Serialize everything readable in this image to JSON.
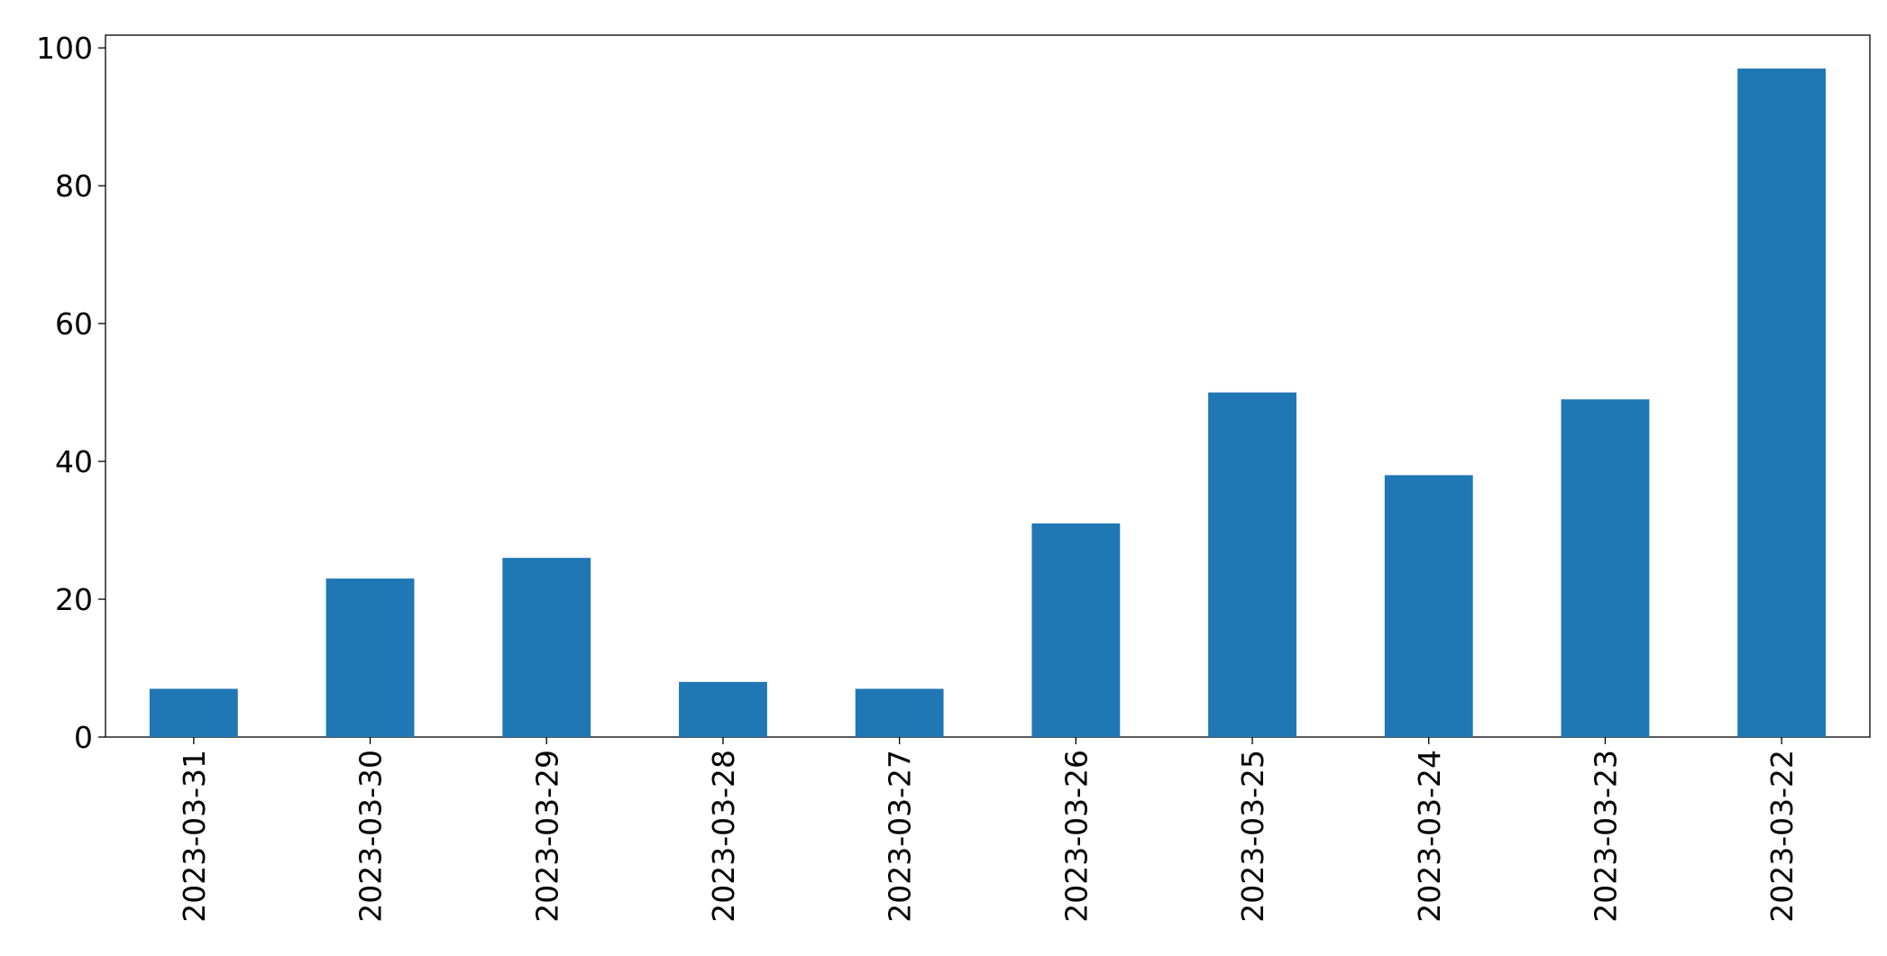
{
  "chart_data": {
    "type": "bar",
    "categories": [
      "2023-03-31",
      "2023-03-30",
      "2023-03-29",
      "2023-03-28",
      "2023-03-27",
      "2023-03-26",
      "2023-03-25",
      "2023-03-24",
      "2023-03-23",
      "2023-03-22"
    ],
    "values": [
      7,
      23,
      26,
      8,
      7,
      31,
      50,
      38,
      49,
      97
    ],
    "color": "#1f77b4",
    "ylim": [
      0,
      101.85
    ],
    "yticks": [
      0,
      20,
      40,
      60,
      80,
      100
    ],
    "grid": false
  }
}
